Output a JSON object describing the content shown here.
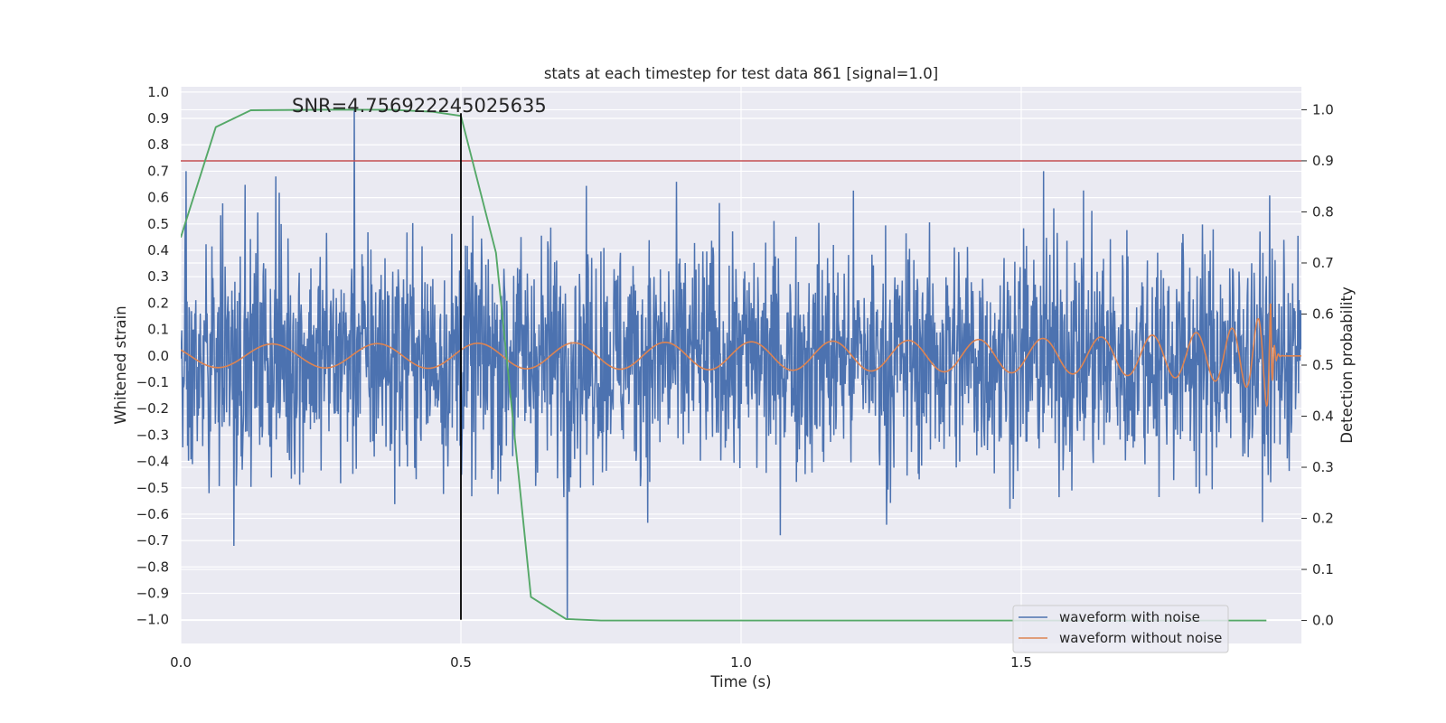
{
  "chart_data": {
    "type": "line",
    "title": "stats at each timestep for test data 861 [signal=1.0]",
    "xlabel": "Time (s)",
    "ylabel_left": "Whitened strain",
    "ylabel_right": "Detection probability",
    "xlim": [
      0.0,
      2.0
    ],
    "ylim_left": [
      -1.09,
      1.02
    ],
    "ylim_right": [
      -0.045,
      1.045
    ],
    "x_ticks": [
      "0.0",
      "0.5",
      "1.0",
      "1.5"
    ],
    "x_tick_values": [
      0.0,
      0.5,
      1.0,
      1.5
    ],
    "y_left_ticks": [
      "1.0",
      "0.9",
      "0.8",
      "0.7",
      "0.6",
      "0.5",
      "0.4",
      "0.3",
      "0.2",
      "0.1",
      "0.0",
      "−0.1",
      "−0.2",
      "−0.3",
      "−0.4",
      "−0.5",
      "−0.6",
      "−0.7",
      "−0.8",
      "−0.9",
      "−1.0"
    ],
    "y_left_tick_values": [
      1.0,
      0.9,
      0.8,
      0.7,
      0.6,
      0.5,
      0.4,
      0.3,
      0.2,
      0.1,
      0.0,
      -0.1,
      -0.2,
      -0.3,
      -0.4,
      -0.5,
      -0.6,
      -0.7,
      -0.8,
      -0.9,
      -1.0
    ],
    "y_right_ticks": [
      "1.0",
      "0.9",
      "0.8",
      "0.7",
      "0.6",
      "0.5",
      "0.4",
      "0.3",
      "0.2",
      "0.1",
      "0.0"
    ],
    "y_right_tick_values": [
      1.0,
      0.9,
      0.8,
      0.7,
      0.6,
      0.5,
      0.4,
      0.3,
      0.2,
      0.1,
      0.0
    ],
    "annotation": "SNR=4.756922245025635",
    "grid": true,
    "legend_position": "lower-right",
    "colors": {
      "background": "#eaeaf2",
      "grid": "#ffffff",
      "noisy": "#4c72b0",
      "clean": "#dd8452",
      "probability": "#55a868",
      "threshold": "#c44e52",
      "marker": "#000000"
    },
    "series": [
      {
        "name": "waveform with noise",
        "axis": "left",
        "style": "noise",
        "duration": 2.0,
        "peaks": [
          {
            "x": 0.31,
            "y": 0.94
          },
          {
            "x": 0.69,
            "y": -1.0
          },
          {
            "x": 0.095,
            "y": -0.72
          },
          {
            "x": 0.01,
            "y": 0.7
          },
          {
            "x": 0.17,
            "y": 0.68
          },
          {
            "x": 1.54,
            "y": 0.7
          },
          {
            "x": 1.26,
            "y": -0.64
          },
          {
            "x": 1.93,
            "y": -0.63
          }
        ]
      },
      {
        "name": "waveform without noise",
        "axis": "left",
        "style": "chirp",
        "duration": 2.0,
        "peak_time": 1.945,
        "peak_amplitude": 0.22
      },
      {
        "name": "Detection probability",
        "axis": "right",
        "x": [
          0.0,
          0.0625,
          0.125,
          0.25,
          0.375,
          0.45,
          0.5,
          0.5625,
          0.625,
          0.6875,
          0.75,
          1.0,
          1.5,
          1.9375
        ],
        "y": [
          0.75,
          0.966,
          0.999,
          1.0,
          1.0,
          0.996,
          0.988,
          0.72,
          0.046,
          0.003,
          0.0,
          0.0,
          0.0,
          0.0
        ]
      }
    ],
    "reference_lines": {
      "threshold_probability": 0.9,
      "vertical_marker": {
        "x": 0.5,
        "y_from": -1.0,
        "y_to": 0.92
      }
    }
  }
}
